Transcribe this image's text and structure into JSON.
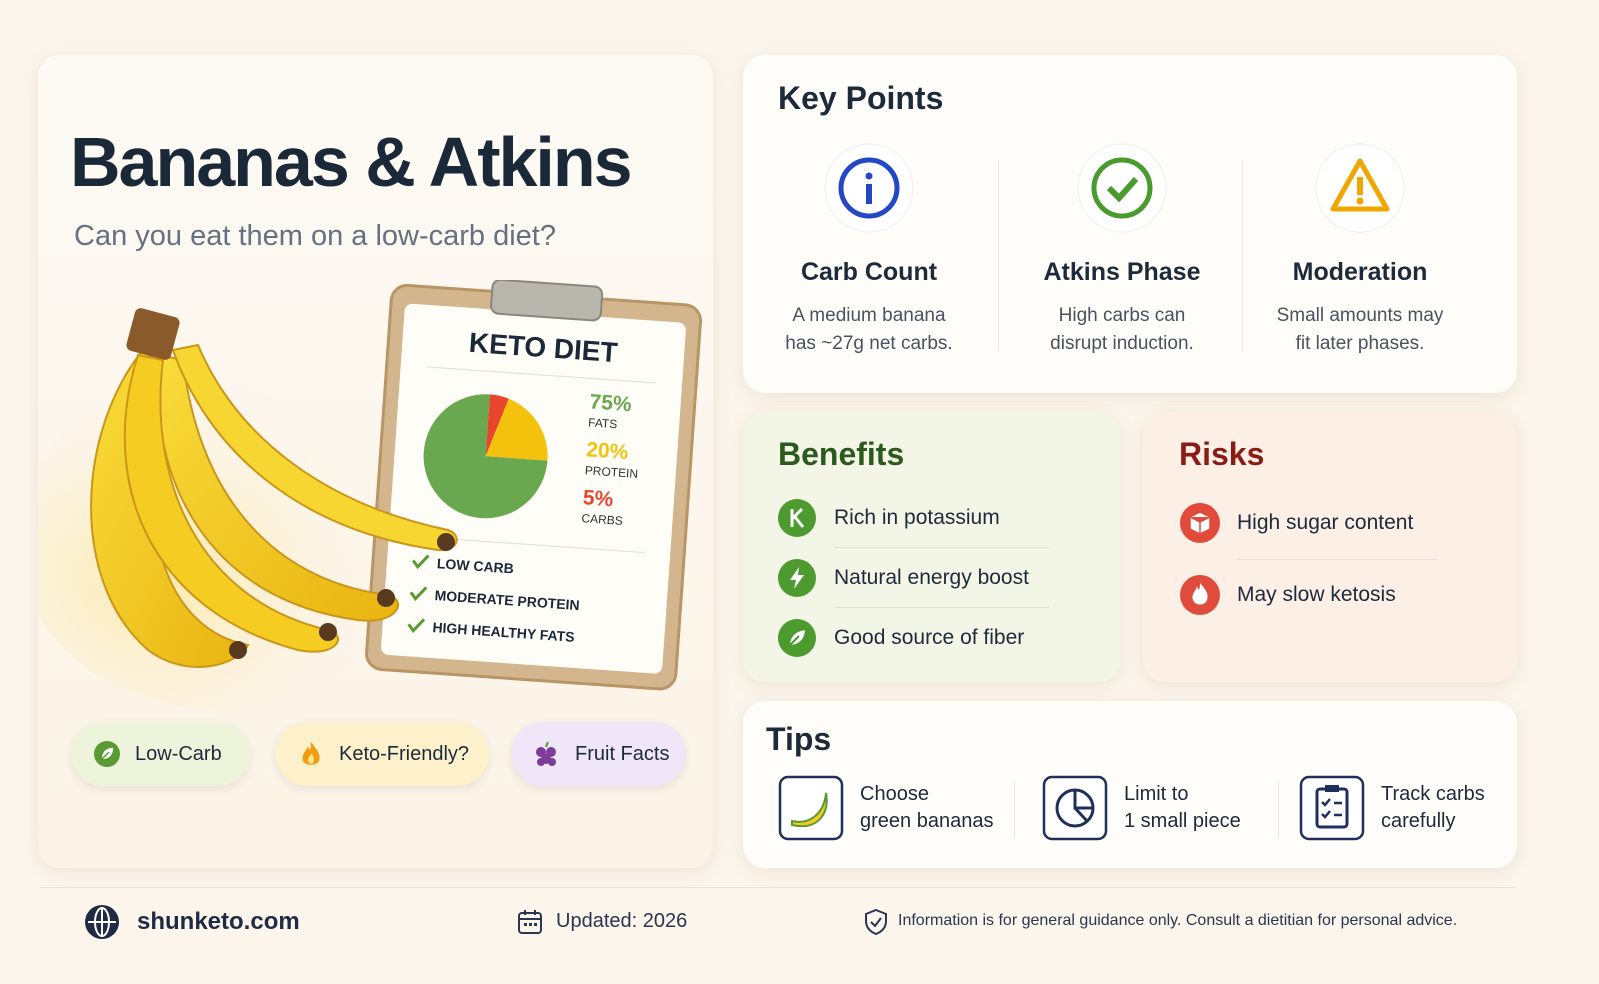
{
  "header": {
    "title": "Bananas & Atkins",
    "subtitle": "Can you eat them on a low-carb diet?"
  },
  "clipboard": {
    "title": "KETO DIET",
    "pie": [
      {
        "value": 75,
        "label": "75%",
        "name": "FATS",
        "color": "#6aa84f"
      },
      {
        "value": 20,
        "label": "20%",
        "name": "PROTEIN",
        "color": "#f4c20d"
      },
      {
        "value": 5,
        "label": "5%",
        "name": "CARBS",
        "color": "#e8452c"
      }
    ],
    "checklist": [
      "LOW CARB",
      "MODERATE PROTEIN",
      "HIGH HEALTHY FATS"
    ]
  },
  "tags": [
    "Low-Carb",
    "Keto-Friendly?",
    "Fruit Facts"
  ],
  "key_points": {
    "title": "Key Points",
    "items": [
      {
        "heading": "Carb Count",
        "lines": [
          "A medium banana",
          "has ~27g net carbs."
        ]
      },
      {
        "heading": "Atkins Phase",
        "lines": [
          "High carbs can",
          "disrupt induction."
        ]
      },
      {
        "heading": "Moderation",
        "lines": [
          "Small amounts may",
          "fit later phases."
        ]
      }
    ]
  },
  "benefits": {
    "title": "Benefits",
    "items": [
      "Rich in potassium",
      "Natural energy boost",
      "Good source of fiber"
    ]
  },
  "risks": {
    "title": "Risks",
    "items": [
      "High sugar content",
      "May slow ketosis"
    ]
  },
  "tips": {
    "title": "Tips",
    "items": [
      {
        "lines": [
          "Choose",
          "green bananas"
        ]
      },
      {
        "lines": [
          "Limit to",
          "1 small piece"
        ]
      },
      {
        "lines": [
          "Track carbs",
          "carefully"
        ]
      }
    ]
  },
  "footer": {
    "site": "shunketo.com",
    "updated": "Updated: 2026",
    "disclaimer": "Information is for general guidance only. Consult a dietitian for personal advice."
  }
}
